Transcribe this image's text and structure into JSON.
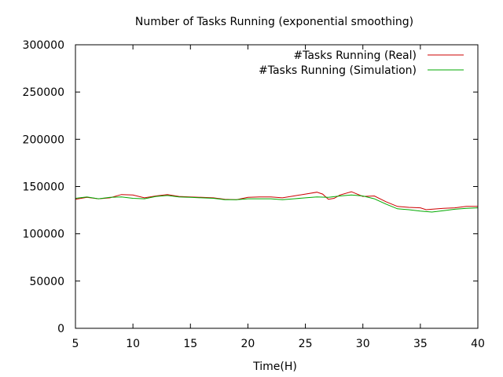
{
  "chart_data": {
    "type": "line",
    "title": "Number of Tasks Running (exponential smoothing)",
    "xlabel": "Time(H)",
    "ylabel": "",
    "xlim": [
      5,
      40
    ],
    "ylim": [
      0,
      300000
    ],
    "xticks": [
      5,
      10,
      15,
      20,
      25,
      30,
      35,
      40
    ],
    "yticks": [
      0,
      50000,
      100000,
      150000,
      200000,
      250000,
      300000
    ],
    "xtick_labels": [
      "5",
      "10",
      "15",
      "20",
      "25",
      "30",
      "35",
      "40"
    ],
    "ytick_labels": [
      "0",
      "50000",
      "100000",
      "150000",
      "200000",
      "250000",
      "300000"
    ],
    "grid": false,
    "legend_position": "top-right",
    "series": [
      {
        "name": "#Tasks Running (Real)",
        "color": "#cc0000",
        "x": [
          5,
          6,
          7,
          8,
          9,
          10,
          11,
          12,
          13,
          14,
          15,
          16,
          17,
          18,
          19,
          20,
          21,
          22,
          23,
          24,
          25,
          26,
          26.5,
          27,
          27.5,
          28,
          29,
          30,
          31,
          32,
          33,
          34,
          35,
          35.5,
          36,
          37,
          38,
          39,
          40
        ],
        "y": [
          136500,
          138500,
          137000,
          138000,
          141500,
          141000,
          138000,
          140000,
          141500,
          139500,
          139000,
          138500,
          138000,
          136500,
          136000,
          138500,
          139000,
          139000,
          138000,
          140000,
          142000,
          144000,
          142000,
          136500,
          137500,
          141000,
          144500,
          139500,
          140000,
          134000,
          129000,
          128000,
          127500,
          125500,
          126000,
          127000,
          127500,
          129000,
          129000
        ]
      },
      {
        "name": "#Tasks Running (Simulation)",
        "color": "#00aa00",
        "x": [
          5,
          6,
          7,
          8,
          9,
          10,
          11,
          12,
          13,
          14,
          15,
          16,
          17,
          18,
          19,
          20,
          21,
          22,
          23,
          24,
          25,
          26,
          27,
          28,
          29,
          30,
          31,
          32,
          33,
          34,
          35,
          36,
          37,
          38,
          39,
          40
        ],
        "y": [
          137500,
          139000,
          137000,
          138500,
          139000,
          137500,
          137000,
          139500,
          140500,
          139000,
          138500,
          138000,
          137500,
          136000,
          136000,
          137000,
          137000,
          137000,
          136000,
          137000,
          138000,
          139000,
          138500,
          140000,
          141000,
          140000,
          137000,
          131500,
          126500,
          125500,
          124000,
          123000,
          124500,
          126000,
          127000,
          127500
        ]
      }
    ]
  }
}
